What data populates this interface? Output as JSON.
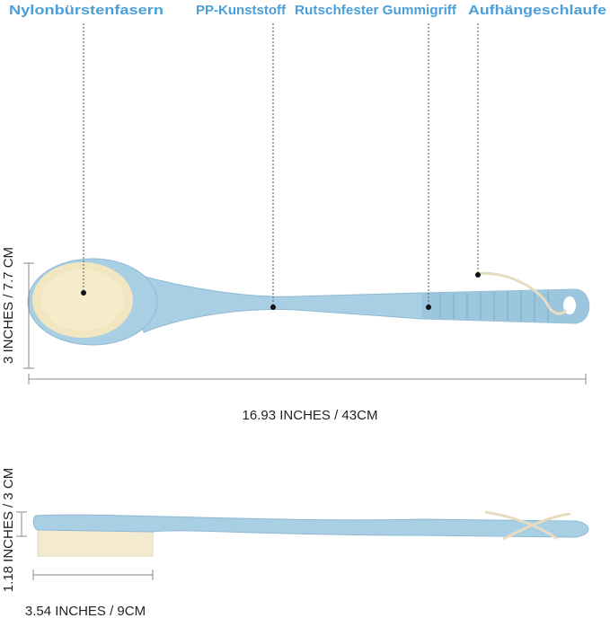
{
  "labels": [
    "Nylonbürstenfasern",
    "PP-Kunststoff",
    "Rutschfester Gummigriff",
    "Aufhängeschlaufe"
  ],
  "dimensions": {
    "top_height": "3 INCHES / 7.7 CM",
    "top_length": "16.93 INCHES / 43CM",
    "side_height": "1.18 INCHES / 3 CM",
    "side_length": "3.54 INCHES / 9CM"
  }
}
